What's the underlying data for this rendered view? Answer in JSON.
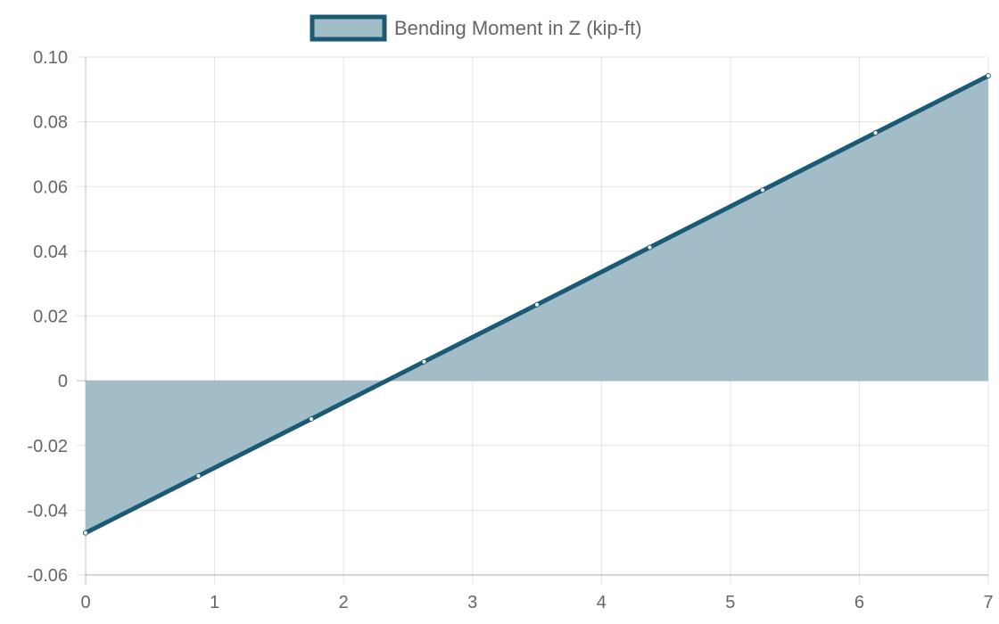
{
  "chart_data": {
    "type": "area",
    "x": [
      0,
      0.875,
      1.75,
      2.625,
      3.5,
      4.375,
      5.25,
      6.125,
      7
    ],
    "series": [
      {
        "name": "Bending Moment in Z (kip-ft)",
        "values": [
          -0.047,
          -0.0294,
          -0.0118,
          0.0059,
          0.0235,
          0.0412,
          0.0589,
          0.0766,
          0.0942
        ],
        "line_color": "#1b5a75",
        "fill_color": "#a3bdc8"
      }
    ],
    "x_ticks": [
      0,
      1,
      2,
      3,
      4,
      5,
      6,
      7
    ],
    "y_ticks": [
      -0.06,
      -0.04,
      -0.02,
      0,
      0.02,
      0.04,
      0.06,
      0.08,
      0.1
    ],
    "x_tick_labels": [
      "0",
      "1",
      "2",
      "3",
      "4",
      "5",
      "6",
      "7"
    ],
    "y_tick_labels": [
      "-0.06",
      "-0.04",
      "-0.02",
      "0",
      "0.02",
      "0.04",
      "0.06",
      "0.08",
      "0.10"
    ],
    "xlim": [
      0,
      7
    ],
    "ylim": [
      -0.06,
      0.1
    ],
    "grid": true,
    "legend_position": "top-center",
    "title": "",
    "xlabel": "",
    "ylabel": ""
  }
}
